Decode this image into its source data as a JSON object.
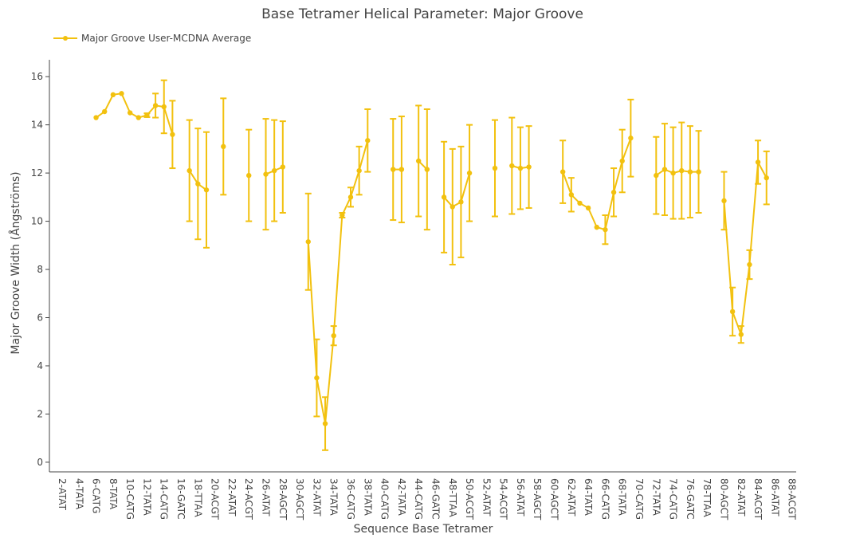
{
  "chart_data": {
    "type": "line",
    "title": "Base Tetramer Helical Parameter: Major Groove",
    "xlabel": "Sequence Base Tetramer",
    "ylabel": "Major Groove Width (Ångströms)",
    "ylim": [
      -0.4,
      16.7
    ],
    "yticks": [
      0,
      2,
      4,
      6,
      8,
      10,
      12,
      14,
      16
    ],
    "grid": false,
    "legend_position": "top-left",
    "color": "#f2c10f",
    "x": [
      "2-ATAT",
      "4-TATA",
      "6-CATG",
      "8-TATA",
      "10-CATG",
      "12-TATA",
      "14-CATG",
      "16-GATC",
      "18-TTAA",
      "20-ACGT",
      "22-ATAT",
      "24-ACGT",
      "26-ATAT",
      "28-AGCT",
      "30-AGCT",
      "32-ATAT",
      "34-TATA",
      "36-CATG",
      "38-TATA",
      "40-CATG",
      "42-TATA",
      "44-CATG",
      "46-GATC",
      "48-TTAA",
      "50-ACGT",
      "52-ATAT",
      "54-ACGT",
      "56-ATAT",
      "58-AGCT",
      "60-AGCT",
      "62-ATAT",
      "64-TATA",
      "66-CATG",
      "68-TATA",
      "70-CATG",
      "72-TATA",
      "74-CATG",
      "76-GATC",
      "78-TTAA",
      "80-AGCT",
      "82-ATAT",
      "84-ACGT",
      "86-ATAT",
      "88-ACGT"
    ],
    "series": [
      {
        "name": "Major Groove User-MCDNA Average",
        "points": [
          {
            "x": 5,
            "y": 14.3,
            "err": 0.0
          },
          {
            "x": 6,
            "y": 14.55,
            "err": 0.0
          },
          {
            "x": 7,
            "y": 15.25,
            "err": 0.0
          },
          {
            "x": 8,
            "y": 15.3,
            "err": 0.0
          },
          {
            "x": 9,
            "y": 14.5,
            "err": 0.0
          },
          {
            "x": 10,
            "y": 14.3,
            "err": 0.0
          },
          {
            "x": 11,
            "y": 14.4,
            "err": 0.08
          },
          {
            "x": 12,
            "y": 14.8,
            "err": 0.5
          },
          {
            "x": 13,
            "y": 14.75,
            "err": 1.1
          },
          {
            "x": 14,
            "y": 13.6,
            "err": 1.4
          },
          {
            "x": 16,
            "y": 12.1,
            "err": 2.1
          },
          {
            "x": 17,
            "y": 11.55,
            "err": 2.3
          },
          {
            "x": 18,
            "y": 11.3,
            "err": 2.4
          },
          {
            "x": 20,
            "y": 13.1,
            "err": 2.0
          },
          {
            "x": 23,
            "y": 11.9,
            "err": 1.9
          },
          {
            "x": 25,
            "y": 11.95,
            "err": 2.3
          },
          {
            "x": 26,
            "y": 12.1,
            "err": 2.1
          },
          {
            "x": 27,
            "y": 12.25,
            "err": 1.9
          },
          {
            "x": 30,
            "y": 9.15,
            "err": 2.0
          },
          {
            "x": 31,
            "y": 3.5,
            "err": 1.6
          },
          {
            "x": 32,
            "y": 1.6,
            "err": 1.1
          },
          {
            "x": 33,
            "y": 5.25,
            "err": 0.4
          },
          {
            "x": 34,
            "y": 10.25,
            "err": 0.1
          },
          {
            "x": 35,
            "y": 11.0,
            "err": 0.4
          },
          {
            "x": 36,
            "y": 12.1,
            "err": 1.0
          },
          {
            "x": 37,
            "y": 13.35,
            "err": 1.3
          },
          {
            "x": 40,
            "y": 12.15,
            "err": 2.1
          },
          {
            "x": 41,
            "y": 12.15,
            "err": 2.2
          },
          {
            "x": 43,
            "y": 12.5,
            "err": 2.3
          },
          {
            "x": 44,
            "y": 12.15,
            "err": 2.5
          },
          {
            "x": 46,
            "y": 11.0,
            "err": 2.3
          },
          {
            "x": 47,
            "y": 10.6,
            "err": 2.4
          },
          {
            "x": 48,
            "y": 10.8,
            "err": 2.3
          },
          {
            "x": 49,
            "y": 12.0,
            "err": 2.0
          },
          {
            "x": 52,
            "y": 12.2,
            "err": 2.0
          },
          {
            "x": 54,
            "y": 12.3,
            "err": 2.0
          },
          {
            "x": 55,
            "y": 12.2,
            "err": 1.7
          },
          {
            "x": 56,
            "y": 12.25,
            "err": 1.7
          },
          {
            "x": 60,
            "y": 12.05,
            "err": 1.3
          },
          {
            "x": 61,
            "y": 11.1,
            "err": 0.7
          },
          {
            "x": 62,
            "y": 10.75,
            "err": 0.0
          },
          {
            "x": 63,
            "y": 10.55,
            "err": 0.0
          },
          {
            "x": 64,
            "y": 9.75,
            "err": 0.0
          },
          {
            "x": 65,
            "y": 9.65,
            "err": 0.6
          },
          {
            "x": 66,
            "y": 11.2,
            "err": 1.0
          },
          {
            "x": 67,
            "y": 12.5,
            "err": 1.3
          },
          {
            "x": 68,
            "y": 13.45,
            "err": 1.6
          },
          {
            "x": 71,
            "y": 11.9,
            "err": 1.6
          },
          {
            "x": 72,
            "y": 12.15,
            "err": 1.9
          },
          {
            "x": 73,
            "y": 12.0,
            "err": 1.9
          },
          {
            "x": 74,
            "y": 12.1,
            "err": 2.0
          },
          {
            "x": 75,
            "y": 12.05,
            "err": 1.9
          },
          {
            "x": 76,
            "y": 12.05,
            "err": 1.7
          },
          {
            "x": 79,
            "y": 10.85,
            "err": 1.2
          },
          {
            "x": 80,
            "y": 6.25,
            "err": 1.0
          },
          {
            "x": 81,
            "y": 5.3,
            "err": 0.35
          },
          {
            "x": 82,
            "y": 8.2,
            "err": 0.6
          },
          {
            "x": 83,
            "y": 12.45,
            "err": 0.9
          },
          {
            "x": 84,
            "y": 11.8,
            "err": 1.1
          }
        ]
      }
    ]
  }
}
